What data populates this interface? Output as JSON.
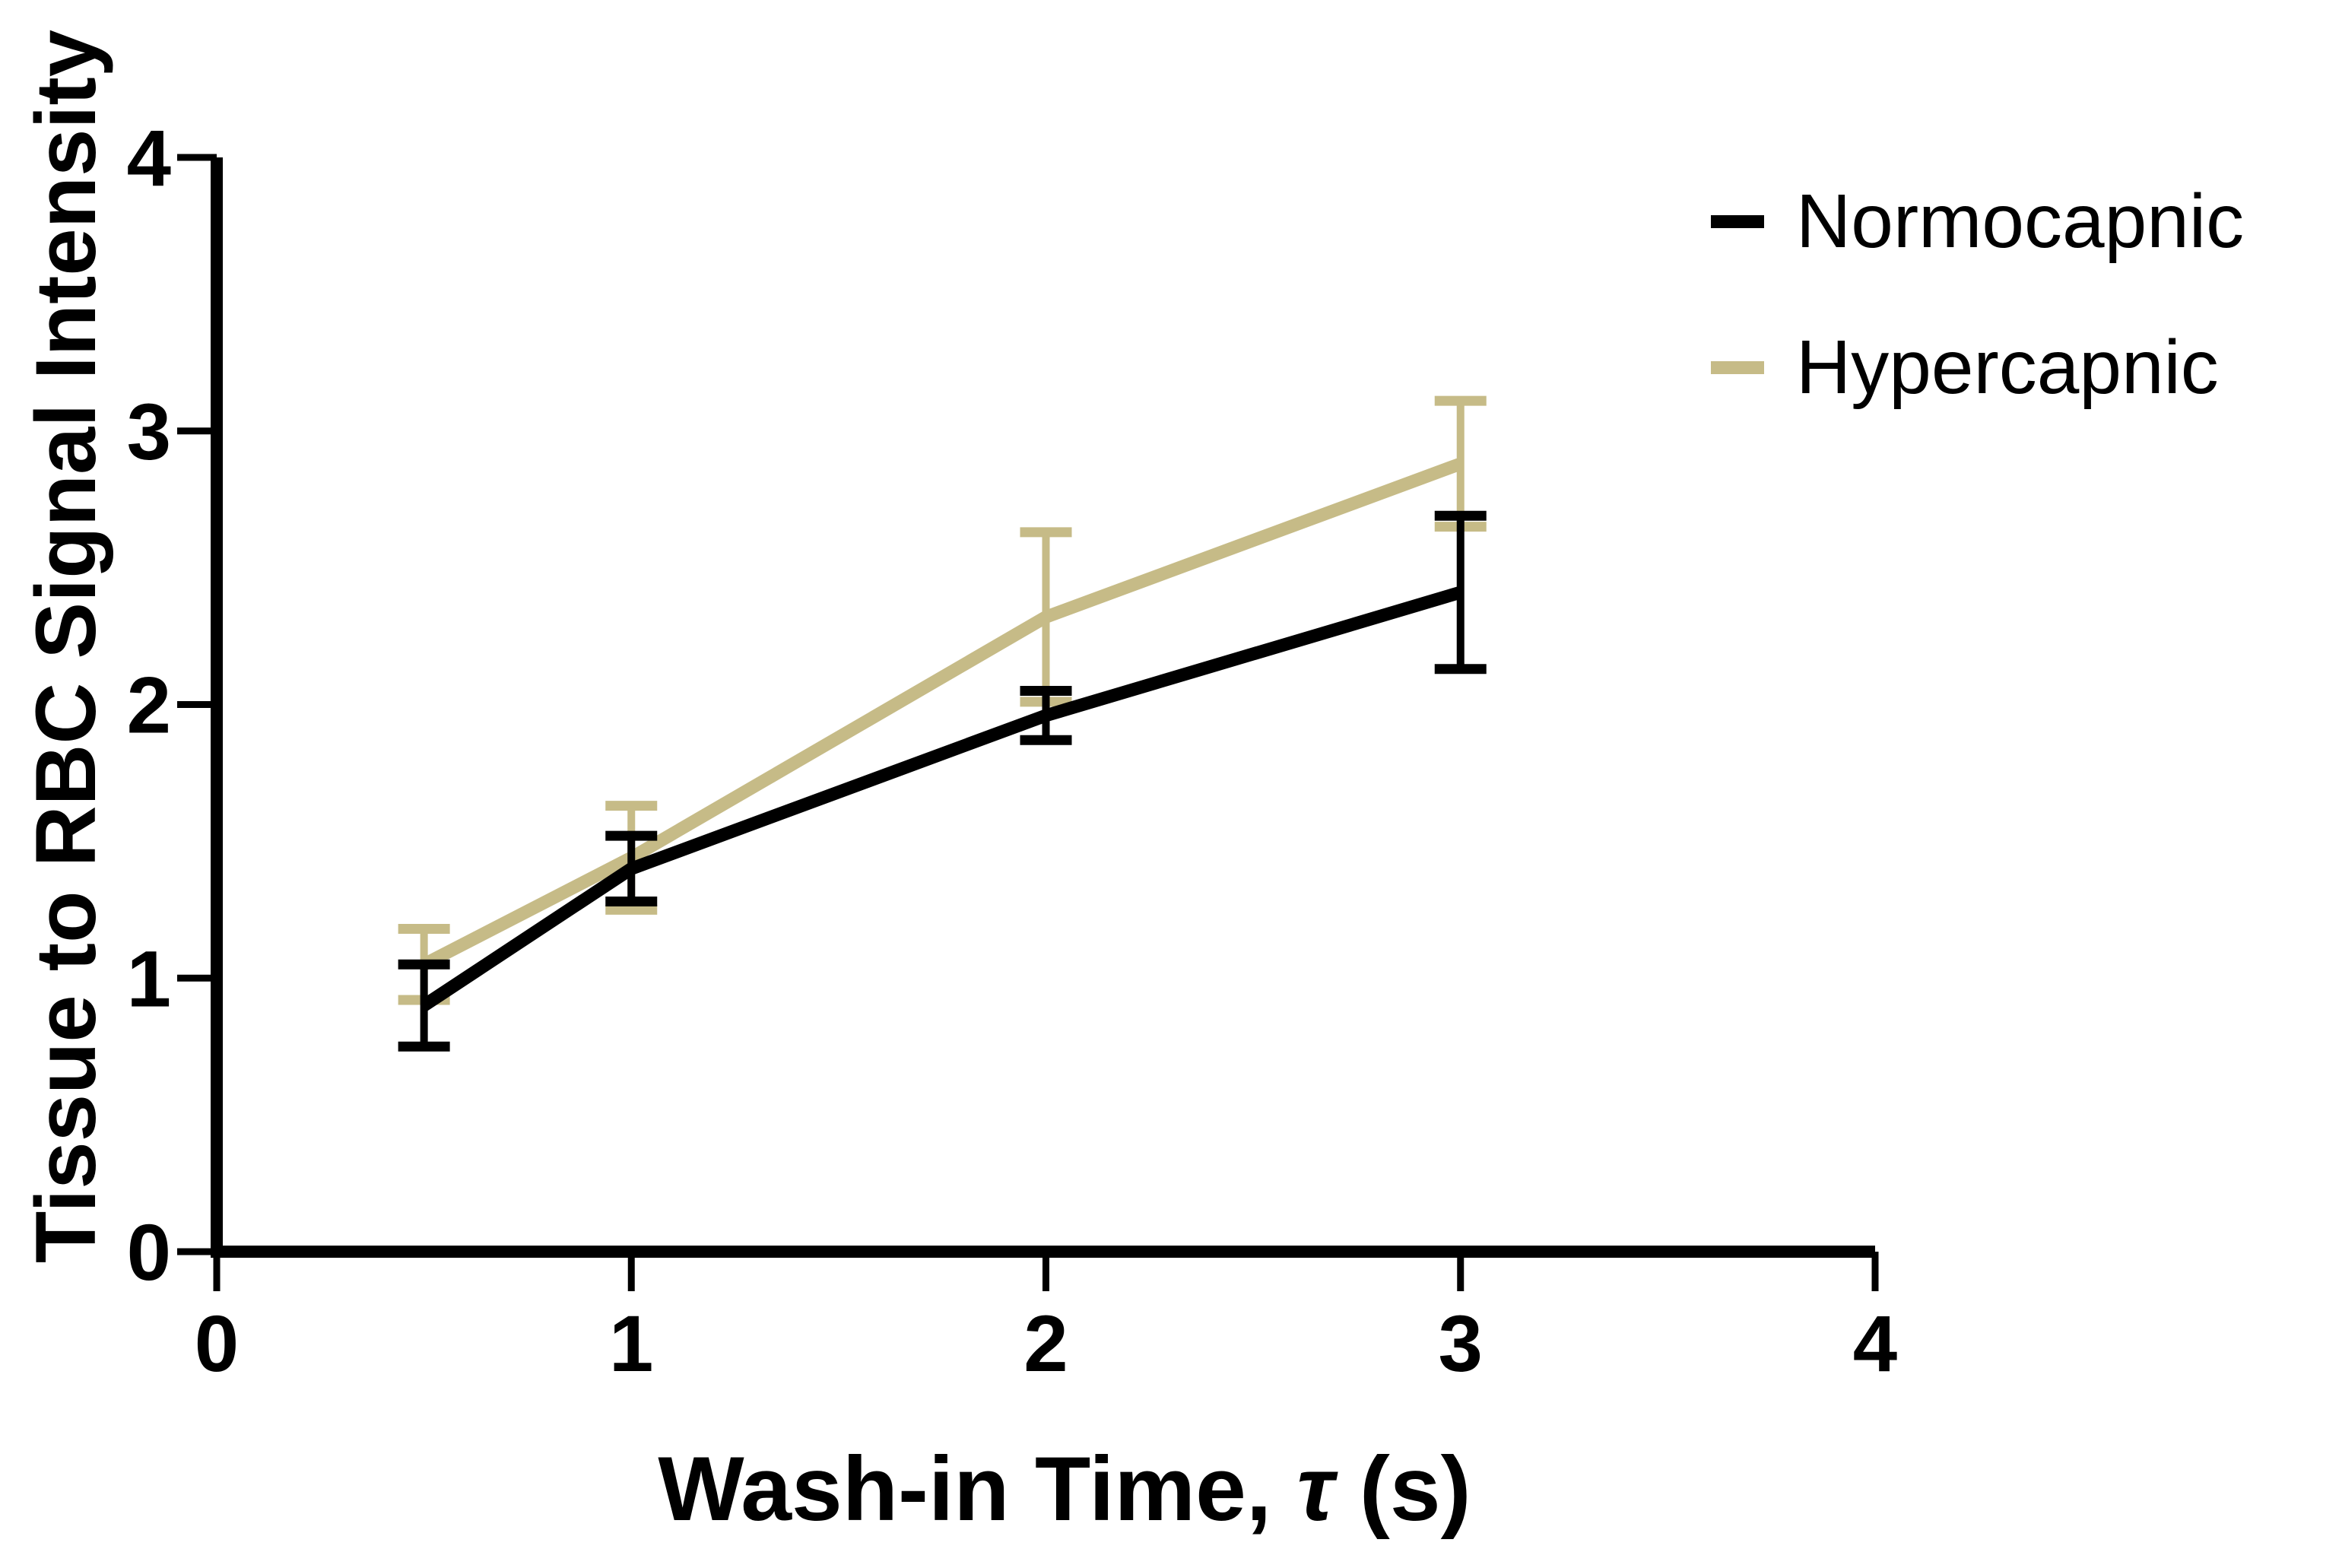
{
  "figure": {
    "background": "#ffffff"
  },
  "chart_data": {
    "type": "line",
    "title": "",
    "xlabel": "Wash-in Time, τ (s)",
    "xlabel_parts": {
      "prefix": "Wash-in Time, ",
      "tau": "τ",
      "suffix": " (s)"
    },
    "ylabel": "Tissue to RBC Signal Intensity",
    "x": [
      0.5,
      1,
      2,
      3
    ],
    "series": [
      {
        "name": "Normocapnic",
        "color": "#000000",
        "values": [
          0.9,
          1.4,
          1.96,
          2.41
        ],
        "errors": [
          0.15,
          0.12,
          0.09,
          0.28
        ]
      },
      {
        "name": "Hypercapnic",
        "color": "#C6BB87",
        "values": [
          1.05,
          1.44,
          2.32,
          2.88
        ],
        "errors": [
          0.13,
          0.19,
          0.31,
          0.23
        ]
      }
    ],
    "xlim": [
      0,
      4
    ],
    "ylim": [
      0,
      4
    ],
    "xticks": [
      0,
      1,
      2,
      3,
      4
    ],
    "yticks": [
      0,
      1,
      2,
      3,
      4
    ],
    "grid": false,
    "error_bars": true,
    "legend_position": "top-right",
    "axis_color": "#000000"
  }
}
